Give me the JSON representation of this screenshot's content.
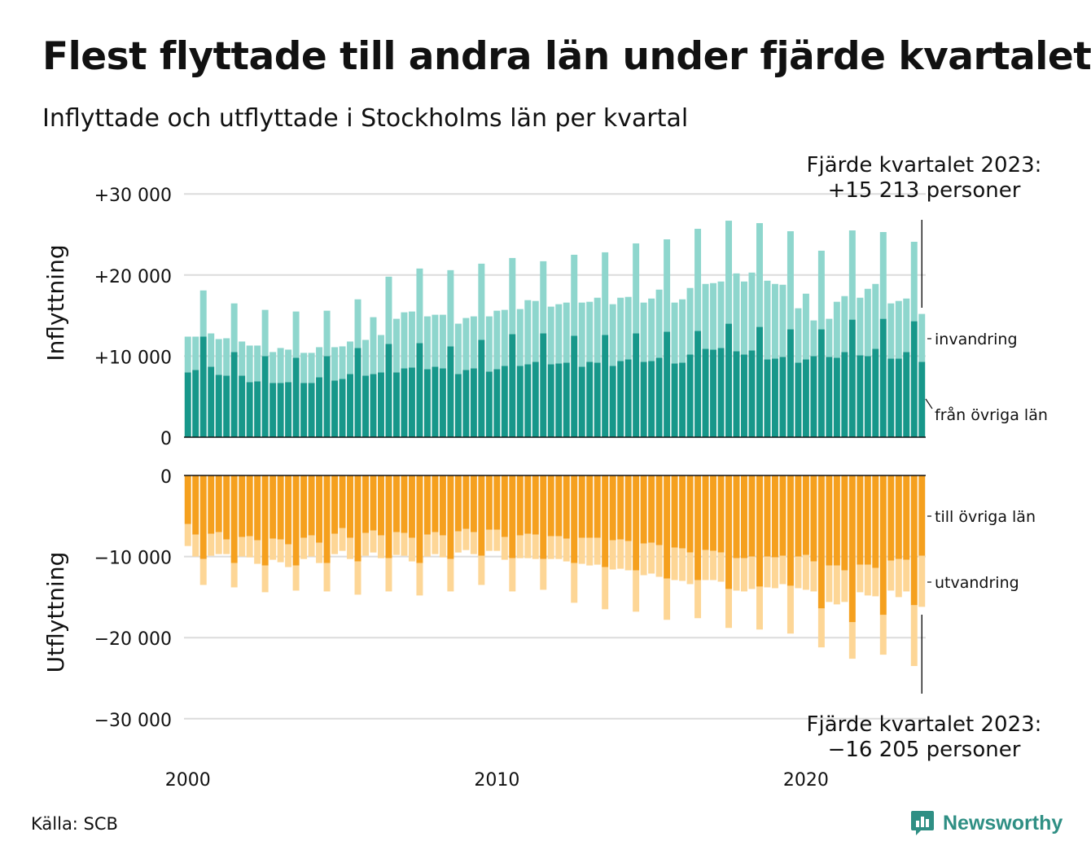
{
  "title": "Flest flyttade till andra län under fjärde kvartalet",
  "subtitle": "Inflyttade och utflyttade i Stockholms län per kvartal",
  "source": "Källa: SCB",
  "logo_text": "Newsworthy",
  "colors": {
    "in_region": "#17978a",
    "in_immigration": "#8ed6cd",
    "out_region": "#f5a01e",
    "out_emigration": "#fdd696",
    "grid": "#dcdcdc"
  },
  "chart_data": {
    "type": "bar",
    "stacked": true,
    "panels": [
      {
        "ylabel": "Inflyttning",
        "yticks": [
          "+30 000",
          "+20 000",
          "+10 000",
          "0"
        ],
        "ylim": [
          0,
          30000
        ],
        "annotation": [
          "Fjärde kvartalet 2023:",
          "+15 213 personer"
        ],
        "series": [
          {
            "name": "från övriga län",
            "values": [
              8000,
              8300,
              12400,
              8700,
              7700,
              7600,
              10500,
              7600,
              6800,
              6900,
              10000,
              6700,
              6700,
              6800,
              9800,
              6700,
              6700,
              7400,
              10000,
              7000,
              7200,
              7800,
              11000,
              7600,
              7800,
              8000,
              11500,
              8000,
              8500,
              8600,
              11600,
              8400,
              8700,
              8500,
              11200,
              7800,
              8300,
              8500,
              12000,
              8100,
              8400,
              8800,
              12700,
              8800,
              9000,
              9300,
              12800,
              9000,
              9100,
              9200,
              12500,
              8700,
              9300,
              9200,
              12600,
              8800,
              9400,
              9600,
              12800,
              9300,
              9400,
              9800,
              13000,
              9100,
              9200,
              10200,
              13100,
              10900,
              10800,
              11000,
              14000,
              10600,
              10200,
              10700,
              13600,
              9600,
              9700,
              9900,
              13300,
              9200,
              9600,
              10000,
              13300,
              9900,
              9800,
              10500,
              14500,
              10100,
              10000,
              10900,
              14600,
              9700,
              9700,
              10500,
              14300,
              9300
            ]
          },
          {
            "name": "invandring",
            "values": [
              4400,
              4100,
              5700,
              4100,
              4400,
              4600,
              6000,
              4200,
              4500,
              4400,
              5700,
              3800,
              4300,
              4000,
              5700,
              3700,
              3700,
              3700,
              5600,
              4100,
              4000,
              4000,
              6000,
              4400,
              7000,
              4600,
              8300,
              6600,
              6900,
              6900,
              9200,
              6500,
              6400,
              6600,
              9400,
              6200,
              6400,
              6400,
              9400,
              6800,
              7200,
              6900,
              9400,
              7000,
              7900,
              7500,
              8900,
              7100,
              7300,
              7400,
              10000,
              7900,
              7400,
              8000,
              10200,
              7600,
              7800,
              7700,
              11100,
              7300,
              7700,
              8400,
              11400,
              7500,
              7800,
              8200,
              12600,
              8000,
              8200,
              8200,
              12700,
              9600,
              9000,
              9600,
              12800,
              9700,
              9200,
              8900,
              12100,
              6700,
              8100,
              4400,
              9700,
              4700,
              6900,
              6900,
              11000,
              7100,
              8300,
              8000,
              10700,
              6800,
              7100,
              6600,
              9800,
              5900
            ]
          }
        ]
      },
      {
        "ylabel": "Utflyttning",
        "yticks": [
          "0",
          "−10 000",
          "−20 000",
          "−30 000"
        ],
        "ylim": [
          -30000,
          0
        ],
        "annotation": [
          "Fjärde kvartalet 2023:",
          "−16 205 personer"
        ],
        "series": [
          {
            "name": "till övriga län",
            "values": [
              -6000,
              -7300,
              -10300,
              -7200,
              -7000,
              -7900,
              -10800,
              -7600,
              -7500,
              -8000,
              -11100,
              -7800,
              -7900,
              -8500,
              -11100,
              -7700,
              -7400,
              -8300,
              -10800,
              -7200,
              -6500,
              -7700,
              -10600,
              -7100,
              -6800,
              -7400,
              -10200,
              -7000,
              -7100,
              -7700,
              -10800,
              -7300,
              -7000,
              -7400,
              -10300,
              -6900,
              -6600,
              -7000,
              -9900,
              -6700,
              -6700,
              -7600,
              -10200,
              -7400,
              -7200,
              -7300,
              -10300,
              -7500,
              -7500,
              -7800,
              -10800,
              -7700,
              -7700,
              -7700,
              -11300,
              -8000,
              -7900,
              -8100,
              -11700,
              -8400,
              -8300,
              -8600,
              -12700,
              -8900,
              -9000,
              -9500,
              -12900,
              -9200,
              -9300,
              -9500,
              -14000,
              -10200,
              -10200,
              -10000,
              -13700,
              -10000,
              -10100,
              -9900,
              -13600,
              -10000,
              -9800,
              -10600,
              -16400,
              -11100,
              -11100,
              -11700,
              -18100,
              -11000,
              -11000,
              -11400,
              -17200,
              -10500,
              -10300,
              -10400,
              -16000,
              -9900
            ]
          },
          {
            "name": "utvandring",
            "values": [
              -2700,
              -2700,
              -3200,
              -2700,
              -2700,
              -1800,
              -3000,
              -2400,
              -2600,
              -2900,
              -3300,
              -2600,
              -2800,
              -2800,
              -3100,
              -2600,
              -2600,
              -2500,
              -3500,
              -2500,
              -2800,
              -2600,
              -4100,
              -2800,
              -2700,
              -2800,
              -4100,
              -2800,
              -2800,
              -2900,
              -4000,
              -2700,
              -2700,
              -2700,
              -4000,
              -2600,
              -2600,
              -2700,
              -3600,
              -2600,
              -2600,
              -2800,
              -4100,
              -2800,
              -3000,
              -3000,
              -3800,
              -2800,
              -2800,
              -2800,
              -4900,
              -3200,
              -3400,
              -3300,
              -5200,
              -3600,
              -3600,
              -3600,
              -5100,
              -3900,
              -3800,
              -3900,
              -5100,
              -4000,
              -4000,
              -3900,
              -4700,
              -3700,
              -3600,
              -3600,
              -4800,
              -4000,
              -4100,
              -4000,
              -5300,
              -3800,
              -3800,
              -3500,
              -5900,
              -3900,
              -4300,
              -3700,
              -4800,
              -4500,
              -4800,
              -3900,
              -4500,
              -3400,
              -3800,
              -3500,
              -4900,
              -3700,
              -4700,
              -3900,
              -7500,
              -6300
            ]
          }
        ]
      }
    ],
    "x_start": "2000-Q1",
    "x_end": "2023-Q4",
    "x_tick_labels": [
      "2000",
      "2010",
      "2020"
    ],
    "grid": true
  }
}
